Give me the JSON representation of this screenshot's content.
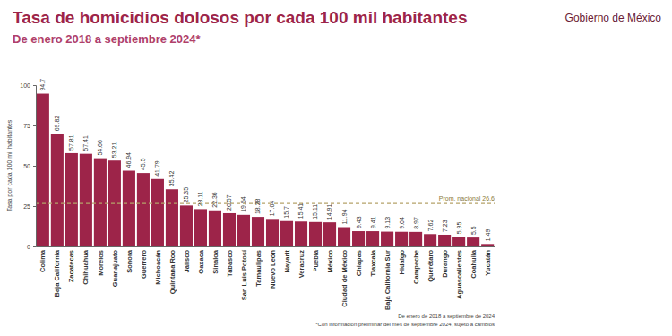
{
  "header": {
    "logo_text": "Gobierno de México"
  },
  "chart_data": {
    "type": "bar",
    "title": "Tasa de homicidios dolosos por cada 100 mil habitantes",
    "subtitle": "De enero 2018 a septiembre 2024*",
    "y_label": "Tasa por cada 100 mil habitantes",
    "categories": [
      "Colima",
      "Baja California",
      "Zacatecas",
      "Chihuahua",
      "Morelos",
      "Guanajuato",
      "Sonora",
      "Guerrero",
      "Michoacán",
      "Quintana Roo",
      "Jalisco",
      "Oaxaca",
      "Sinaloa",
      "Tabasco",
      "San Luis Potosí",
      "Tamaulipas",
      "Nuevo León",
      "Nayarit",
      "Veracruz",
      "Puebla",
      "México",
      "Ciudad de México",
      "Chiapas",
      "Tlaxcala",
      "Baja California Sur",
      "Hidalgo",
      "Campeche",
      "Querétaro",
      "Durango",
      "Aguascalientes",
      "Coahuila",
      "Yucatán"
    ],
    "values": [
      94.7,
      69.82,
      57.81,
      57.41,
      54.66,
      53.21,
      46.94,
      45.5,
      41.79,
      35.42,
      25.35,
      23.11,
      22.36,
      20.57,
      19.54,
      18.28,
      17.04,
      15.7,
      15.41,
      15.11,
      14.91,
      11.94,
      9.43,
      9.41,
      9.13,
      9.04,
      8.97,
      7.62,
      7.23,
      5.95,
      5.5,
      1.49
    ],
    "color": "#9d2449",
    "ylim": [
      0,
      100
    ],
    "yticks": [
      0,
      25,
      50,
      75,
      100
    ],
    "grid": false,
    "data_labels": true,
    "annotations": [
      {
        "text": "Prom. nacional 26.6",
        "value": 26.6
      }
    ],
    "footnotes": [
      "De enero de 2018 a septiembre de 2024",
      "*Con información preliminar del mes de septiembre 2024, sujeto a cambios"
    ]
  }
}
